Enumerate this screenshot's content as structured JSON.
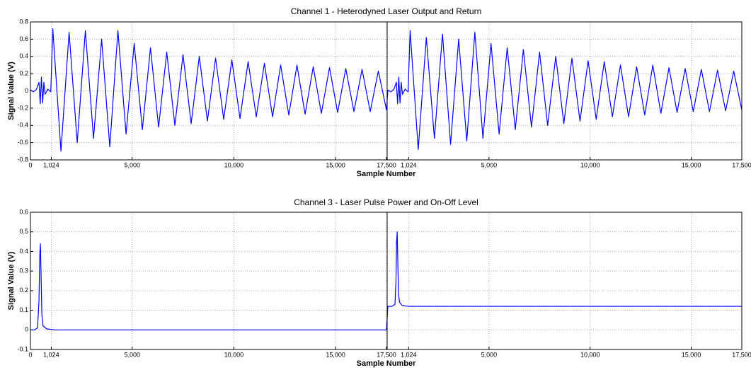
{
  "chart_data": [
    {
      "type": "line",
      "title": "Channel 1 - Heterodyned Laser Output and Return",
      "xlabel": "Sample Number",
      "ylabel": "Signal Value (V)",
      "color": "#0000ff",
      "grid": true,
      "ylim": [
        -0.8,
        0.8
      ],
      "yticks": [
        -0.8,
        -0.6,
        -0.4,
        -0.2,
        0,
        0.2,
        0.4,
        0.6,
        0.8
      ],
      "segments": [
        {
          "xlim": [
            0,
            17500
          ],
          "xticks": [
            0,
            {
              "value": 1024,
              "label": "1,024"
            },
            {
              "value": 5000,
              "label": "5,000"
            },
            {
              "value": 10000,
              "label": "10,000"
            },
            {
              "value": 15000,
              "label": "15,000"
            },
            {
              "value": 17500,
              "label": "17,500"
            }
          ],
          "x": [
            0,
            150,
            300,
            420,
            480,
            540,
            600,
            660,
            720,
            850,
            1000,
            1100,
            1500,
            1900,
            2300,
            2700,
            3100,
            3500,
            3900,
            4300,
            4700,
            5100,
            5500,
            5900,
            6300,
            6700,
            7100,
            7500,
            7900,
            8300,
            8700,
            9100,
            9500,
            9900,
            10300,
            10700,
            11100,
            11500,
            11900,
            12300,
            12700,
            13100,
            13500,
            13900,
            14300,
            14700,
            15100,
            15500,
            15900,
            16300,
            16700,
            17100,
            17500
          ],
          "values": [
            0.01,
            -0.01,
            0.02,
            0.1,
            -0.15,
            0.16,
            -0.14,
            0.1,
            -0.04,
            0.02,
            -0.01,
            0.72,
            -0.7,
            0.68,
            -0.6,
            0.7,
            -0.55,
            0.6,
            -0.65,
            0.7,
            -0.5,
            0.55,
            -0.45,
            0.5,
            -0.42,
            0.45,
            -0.4,
            0.42,
            -0.38,
            0.4,
            -0.35,
            0.38,
            -0.33,
            0.36,
            -0.32,
            0.34,
            -0.3,
            0.32,
            -0.3,
            0.3,
            -0.28,
            0.3,
            -0.27,
            0.28,
            -0.26,
            0.27,
            -0.25,
            0.26,
            -0.24,
            0.25,
            -0.24,
            0.23,
            -0.22
          ]
        },
        {
          "xlim": [
            0,
            17500
          ],
          "xticks": [
            {
              "value": 1024,
              "label": "1,024"
            },
            {
              "value": 5000,
              "label": "5,000"
            },
            {
              "value": 10000,
              "label": "10,000"
            },
            {
              "value": 15000,
              "label": "15,000"
            },
            {
              "value": 17500,
              "label": "17,500"
            }
          ],
          "x": [
            0,
            150,
            300,
            420,
            480,
            540,
            600,
            660,
            720,
            850,
            1000,
            1100,
            1500,
            1900,
            2300,
            2700,
            3100,
            3500,
            3900,
            4300,
            4700,
            5100,
            5500,
            5900,
            6300,
            6700,
            7100,
            7500,
            7900,
            8300,
            8700,
            9100,
            9500,
            9900,
            10300,
            10700,
            11100,
            11500,
            11900,
            12300,
            12700,
            13100,
            13500,
            13900,
            14300,
            14700,
            15100,
            15500,
            15900,
            16300,
            16700,
            17100,
            17500
          ],
          "values": [
            0.01,
            -0.01,
            0.02,
            0.1,
            -0.15,
            0.16,
            -0.14,
            0.1,
            -0.04,
            0.02,
            -0.01,
            0.7,
            -0.68,
            0.62,
            -0.55,
            0.66,
            -0.62,
            0.6,
            -0.58,
            0.68,
            -0.55,
            0.55,
            -0.5,
            0.5,
            -0.45,
            0.48,
            -0.42,
            0.45,
            -0.4,
            0.4,
            -0.38,
            0.38,
            -0.35,
            0.35,
            -0.33,
            0.34,
            -0.3,
            0.3,
            -0.3,
            0.28,
            -0.28,
            0.3,
            -0.26,
            0.27,
            -0.25,
            0.26,
            -0.24,
            0.25,
            -0.24,
            0.24,
            -0.23,
            0.23,
            -0.22
          ]
        }
      ]
    },
    {
      "type": "line",
      "title": "Channel 3 - Laser Pulse Power and On-Off Level",
      "xlabel": "Sample Number",
      "ylabel": "Signal Value (V)",
      "color": "#0000ff",
      "grid": true,
      "ylim": [
        -0.1,
        0.6
      ],
      "yticks": [
        -0.1,
        0,
        0.1,
        0.2,
        0.3,
        0.4,
        0.5,
        0.6
      ],
      "segments": [
        {
          "xlim": [
            0,
            17500
          ],
          "xticks": [
            0,
            {
              "value": 1024,
              "label": "1,024"
            },
            {
              "value": 5000,
              "label": "5,000"
            },
            {
              "value": 10000,
              "label": "10,000"
            },
            {
              "value": 15000,
              "label": "15,000"
            },
            {
              "value": 17500,
              "label": "17,500"
            }
          ],
          "x": [
            0,
            200,
            350,
            420,
            460,
            490,
            520,
            560,
            620,
            800,
            1200,
            3000,
            6000,
            9000,
            12000,
            15000,
            17500
          ],
          "values": [
            0,
            0,
            0.01,
            0.15,
            0.38,
            0.44,
            0.3,
            0.08,
            0.02,
            0.005,
            0,
            0,
            0,
            0,
            0,
            0,
            0
          ]
        },
        {
          "xlim": [
            0,
            17500
          ],
          "xticks": [
            {
              "value": 1024,
              "label": "1,024"
            },
            {
              "value": 5000,
              "label": "5,000"
            },
            {
              "value": 10000,
              "label": "10,000"
            },
            {
              "value": 15000,
              "label": "15,000"
            },
            {
              "value": 17500,
              "label": "17,500"
            }
          ],
          "x": [
            0,
            200,
            350,
            400,
            430,
            460,
            490,
            530,
            580,
            700,
            1000,
            3000,
            6000,
            9000,
            12000,
            15000,
            17500
          ],
          "values": [
            0.12,
            0.12,
            0.13,
            0.25,
            0.45,
            0.5,
            0.35,
            0.18,
            0.14,
            0.125,
            0.12,
            0.12,
            0.12,
            0.12,
            0.12,
            0.12,
            0.12
          ]
        }
      ]
    }
  ]
}
